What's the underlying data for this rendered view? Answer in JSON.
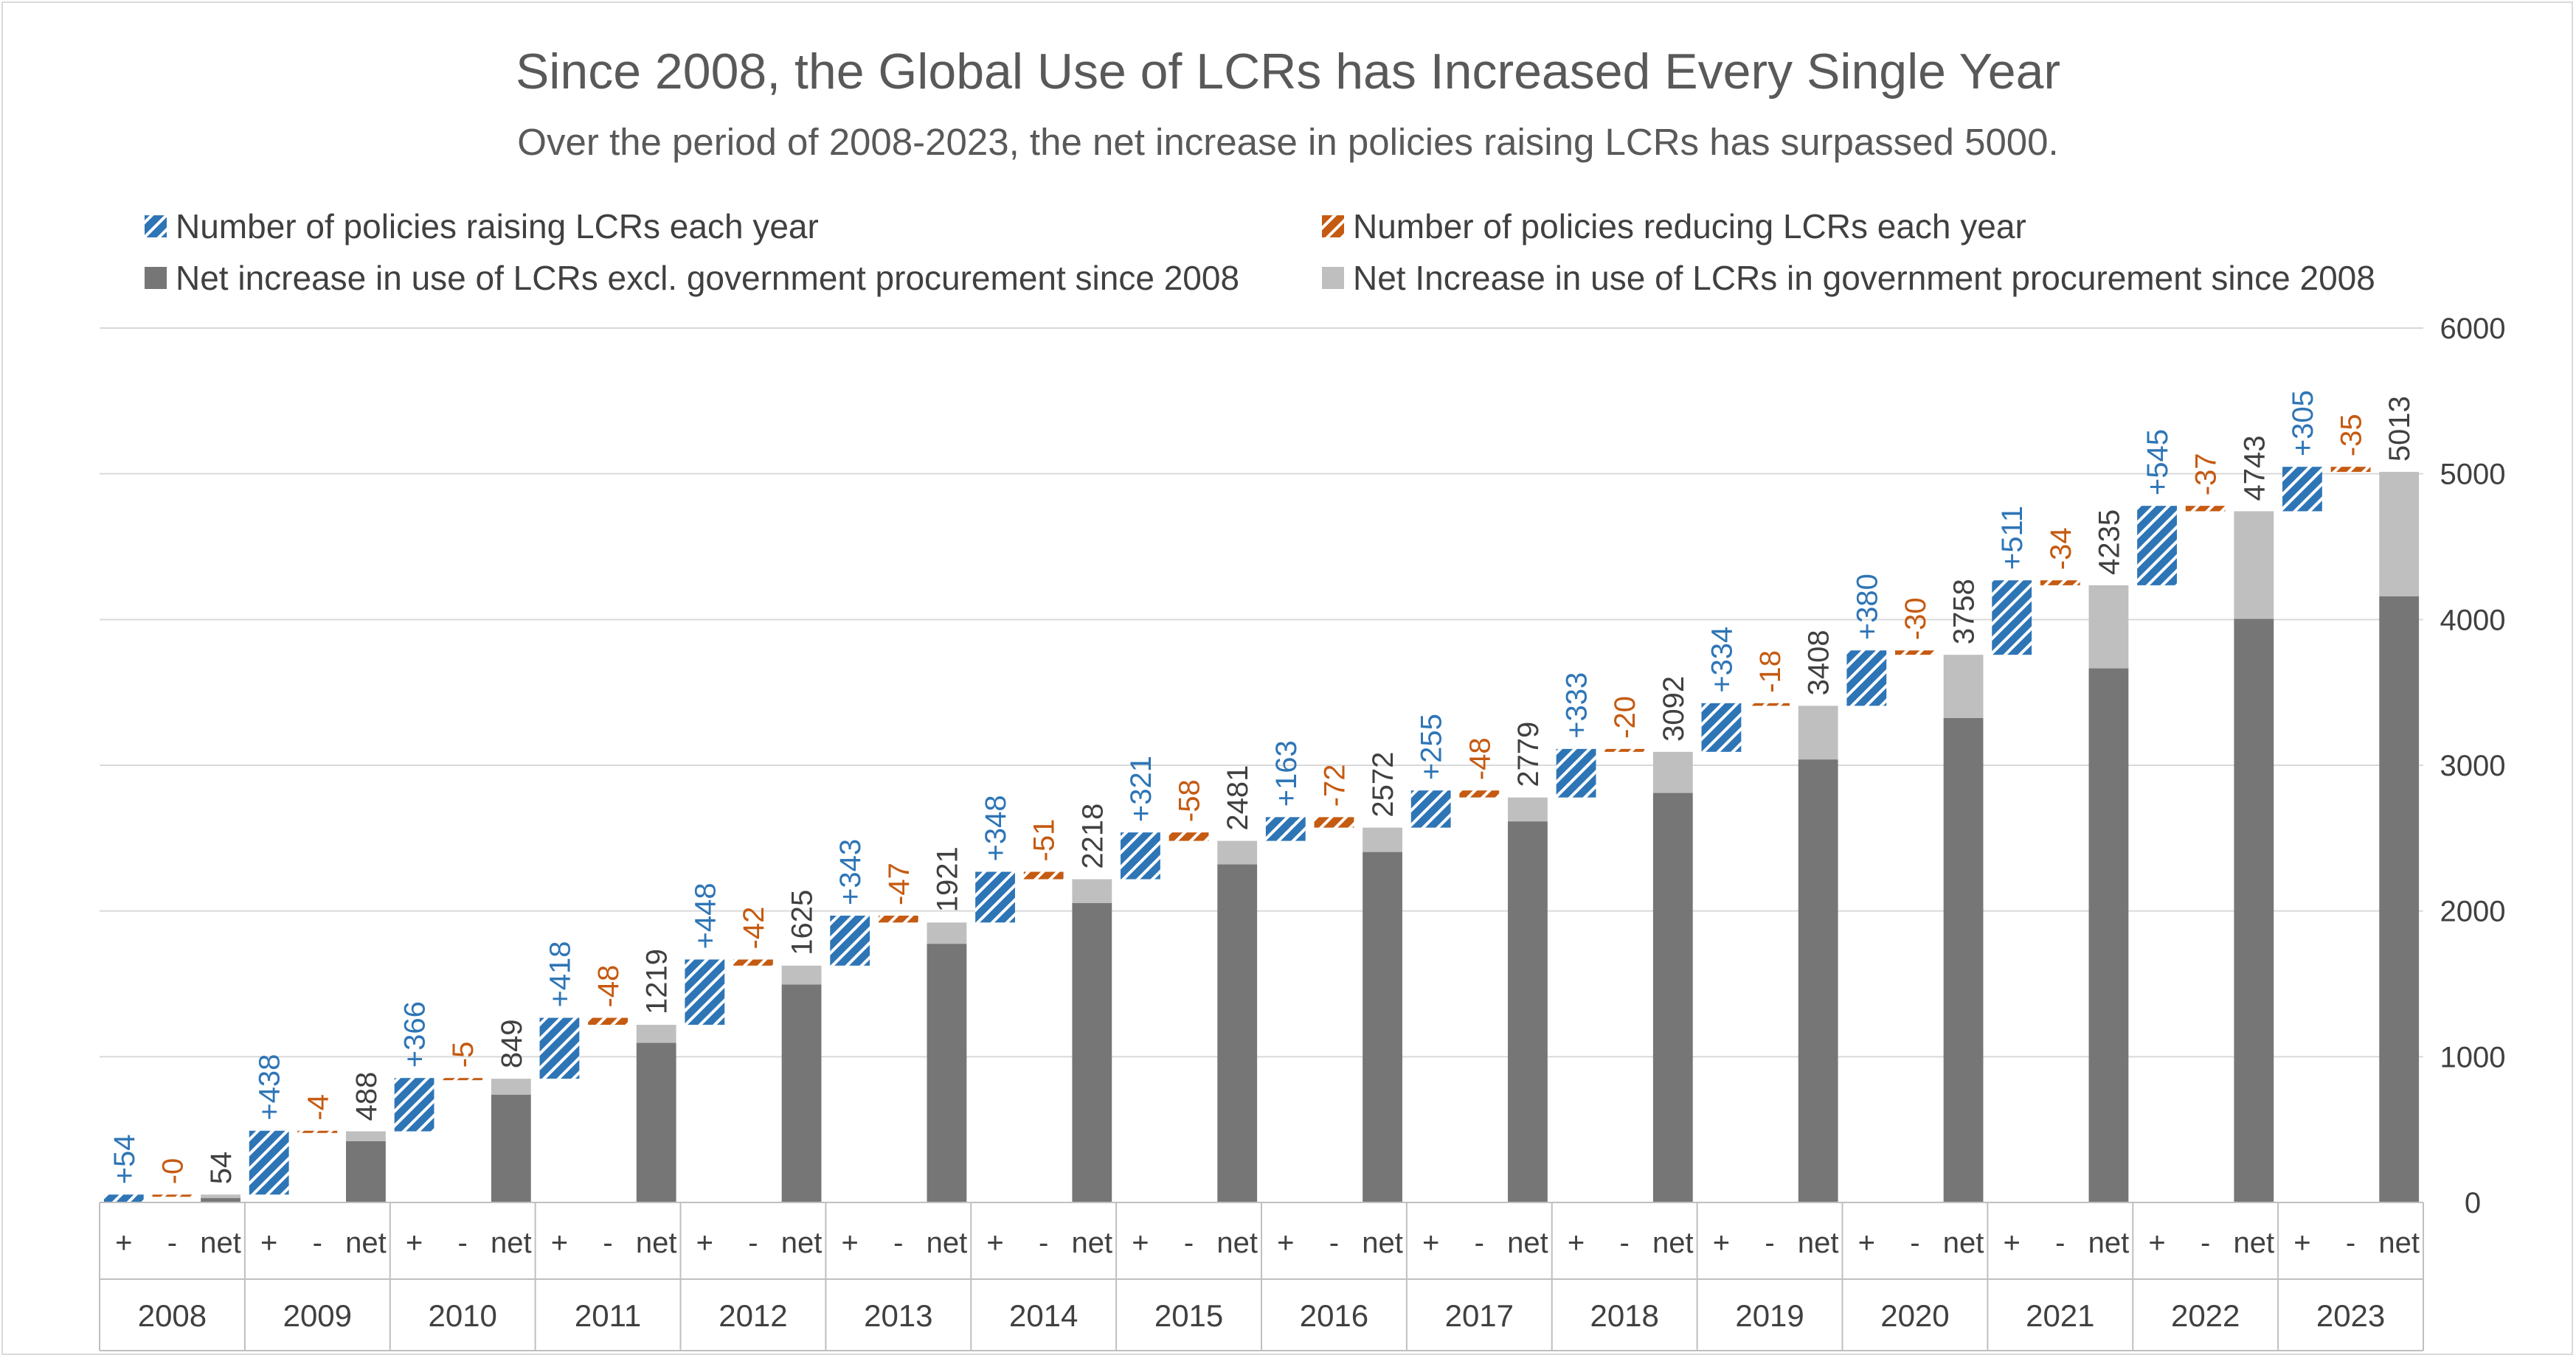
{
  "chart_data": {
    "type": "bar",
    "subtype": "waterfall-stacked",
    "title": "Since 2008, the Global Use of LCRs has Increased Every Single Year",
    "subtitle": "Over the period of 2008-2023, the net increase in policies raising LCRs has surpassed 5000.",
    "y_axis": {
      "position": "right",
      "range": [
        0,
        6000
      ],
      "ticks": [
        "0",
        "1000",
        "2000",
        "3000",
        "4000",
        "5000",
        "6000"
      ],
      "grid": true
    },
    "legend": {
      "placement": "top",
      "items": [
        {
          "key": "raise",
          "label": "Number of policies raising LCRs each year",
          "color": "#2e75b6",
          "pattern": "diagonal-stripes"
        },
        {
          "key": "reduce",
          "label": "Number of policies reducing LCRs each year",
          "color": "#c55a11",
          "pattern": "diagonal-stripes"
        },
        {
          "key": "net_excl",
          "label": "Net increase in use of LCRs excl. government procurement since 2008",
          "color": "#767676"
        },
        {
          "key": "net_gp",
          "label": "Net Increase in use of LCRs in government procurement since 2008",
          "color": "#bfbfbf"
        }
      ]
    },
    "sub_categories": [
      "+",
      "-",
      "net"
    ],
    "years": [
      "2008",
      "2009",
      "2010",
      "2011",
      "2012",
      "2013",
      "2014",
      "2015",
      "2016",
      "2017",
      "2018",
      "2019",
      "2020",
      "2021",
      "2022",
      "2023"
    ],
    "raise": [
      54,
      438,
      366,
      418,
      448,
      343,
      348,
      321,
      163,
      255,
      333,
      334,
      380,
      511,
      545,
      305
    ],
    "reduce": [
      0,
      4,
      5,
      48,
      42,
      47,
      51,
      58,
      72,
      48,
      20,
      18,
      30,
      34,
      37,
      35
    ],
    "net_total": [
      54,
      488,
      849,
      1219,
      1625,
      1921,
      2218,
      2481,
      2572,
      2779,
      3092,
      3408,
      3758,
      4235,
      4743,
      5013
    ],
    "net_excl_gp": [
      30,
      420,
      740,
      1095,
      1495,
      1775,
      2055,
      2320,
      2405,
      2615,
      2810,
      3040,
      3325,
      3665,
      4005,
      4160
    ],
    "raise_labels": [
      "+54",
      "+438",
      "+366",
      "+418",
      "+448",
      "+343",
      "+348",
      "+321",
      "+163",
      "+255",
      "+333",
      "+334",
      "+380",
      "+511",
      "+545",
      "+305"
    ],
    "reduce_labels": [
      "-0",
      "-4",
      "-5",
      "-48",
      "-42",
      "-47",
      "-51",
      "-58",
      "-72",
      "-48",
      "-20",
      "-18",
      "-30",
      "-34",
      "-37",
      "-35"
    ],
    "net_labels": [
      "54",
      "488",
      "849",
      "1219",
      "1625",
      "1921",
      "2218",
      "2481",
      "2572",
      "2779",
      "3092",
      "3408",
      "3758",
      "4235",
      "4743",
      "5013"
    ],
    "colors": {
      "raise": "#2e75b6",
      "reduce": "#c55a11",
      "net_excl": "#767676",
      "net_gp": "#bfbfbf",
      "raise_label": "#2e75b6",
      "reduce_label": "#c55a11",
      "net_label": "#404040",
      "grid": "#d9d9d9"
    }
  }
}
